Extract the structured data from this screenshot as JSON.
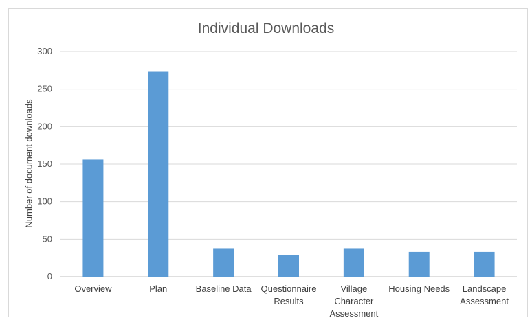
{
  "chart_data": {
    "type": "bar",
    "title": "Individual Downloads",
    "xlabel": "",
    "ylabel": "Number of document downloads",
    "categories": [
      [
        "Overview"
      ],
      [
        "Plan"
      ],
      [
        "Baseline Data"
      ],
      [
        "Questionnaire",
        "Results"
      ],
      [
        "Village",
        "Character",
        "Assessment"
      ],
      [
        "Housing Needs"
      ],
      [
        "Landscape",
        "Assessment"
      ]
    ],
    "values": [
      156,
      273,
      38,
      29,
      38,
      33,
      33
    ],
    "ylim": [
      0,
      300
    ],
    "yticks": [
      0,
      50,
      100,
      150,
      200,
      250,
      300
    ],
    "grid": true,
    "bar_color": "#5b9bd5"
  }
}
